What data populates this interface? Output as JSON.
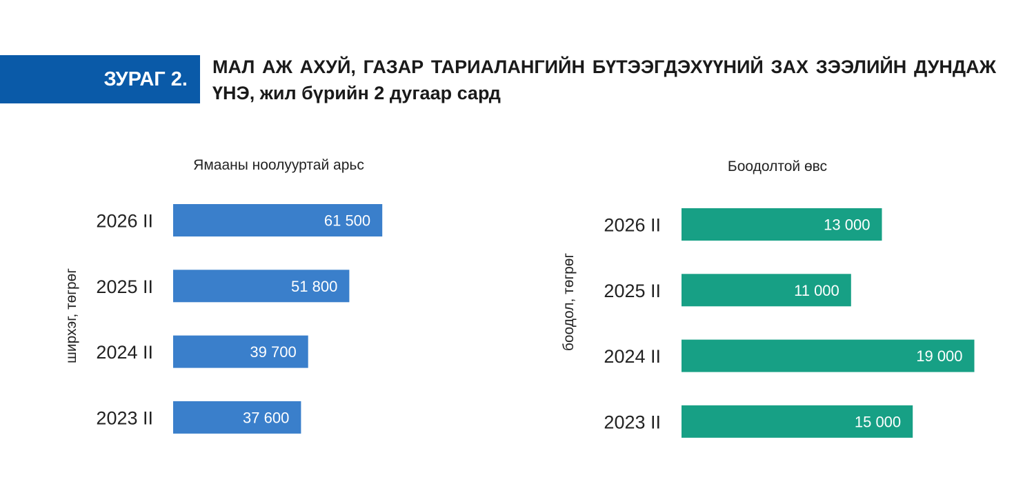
{
  "header": {
    "figure_label": "ЗУРАГ 2.",
    "title": "МАЛ АЖ АХУЙ, ГАЗАР ТАРИАЛАНГИЙН БҮТЭЭГДЭХҮҮНИЙ ЗАХ ЗЭЭЛИЙН ДУНДАЖ ҮНЭ, жил бүрийн 2 дугаар сард"
  },
  "chart_data": [
    {
      "type": "bar",
      "orientation": "horizontal",
      "title": "Ямааны ноолууртай арьс",
      "ylabel": "ширхэг, төгрөг",
      "color": "#3a7fcb",
      "categories": [
        "2026 II",
        "2025 II",
        "2024 II",
        "2023 II"
      ],
      "values": [
        61500,
        51800,
        39700,
        37600
      ],
      "value_labels": [
        "61 500",
        "51 800",
        "39 700",
        "37 600"
      ],
      "xlim": [
        0,
        71000
      ],
      "grid": false,
      "legend": "none"
    },
    {
      "type": "bar",
      "orientation": "horizontal",
      "title": "Боодолтой өвс",
      "ylabel": "боодол, төгрөг",
      "color": "#17a085",
      "categories": [
        "2026 II",
        "2025 II",
        "2024 II",
        "2023 II"
      ],
      "values": [
        13000,
        11000,
        19000,
        15000
      ],
      "value_labels": [
        "13 000",
        "11 000",
        "19 000",
        "15 000"
      ],
      "xlim": [
        0,
        19200
      ],
      "grid": false,
      "legend": "none"
    }
  ]
}
